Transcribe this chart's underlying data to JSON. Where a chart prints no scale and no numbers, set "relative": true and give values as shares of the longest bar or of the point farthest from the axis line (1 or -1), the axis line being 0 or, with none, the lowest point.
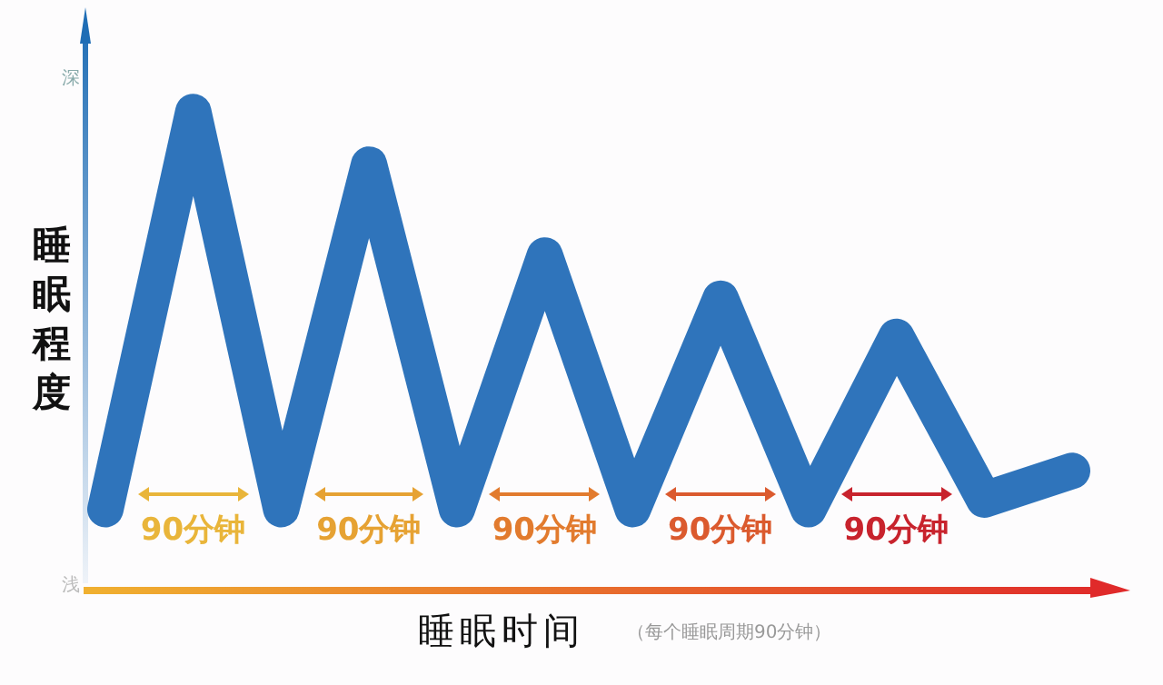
{
  "chart_data": {
    "type": "line",
    "relative": true,
    "ylabel": "睡眠程度",
    "xlabel": "睡眠时间",
    "categories": [
      null,
      null,
      null,
      null,
      null,
      null,
      null,
      null,
      null,
      null,
      null,
      null
    ],
    "series": [
      {
        "color": "#2f74bb",
        "values": [
          0.17,
          1,
          0.17,
          0.89,
          0.17,
          0.7,
          0.17,
          0.61,
          0.17,
          0.53,
          0.19,
          0.25
        ]
      }
    ],
    "annotations": [
      "深",
      "浅",
      "90分钟",
      "90分钟",
      "90分钟",
      "90分钟",
      "90分钟",
      "（每个睡眠周期90分钟）"
    ],
    "grid": false,
    "legend": false,
    "marker": "none",
    "line_style": "solid"
  }
}
